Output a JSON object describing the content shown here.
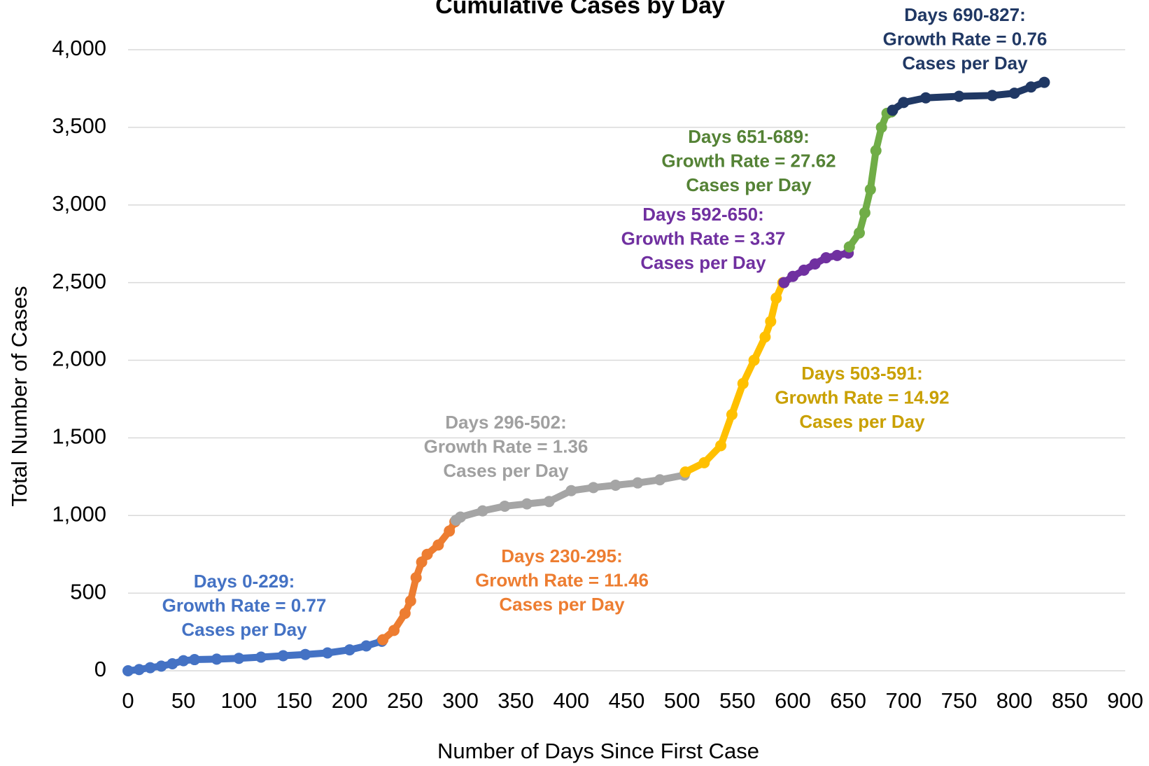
{
  "chart_data": {
    "type": "scatter",
    "title": "Cumulative Cases by Day",
    "x_label": "Number of Days Since First Case",
    "y_label": "Total Number of Cases",
    "xlim": [
      0,
      900
    ],
    "xticks": [
      0,
      50,
      100,
      150,
      200,
      250,
      300,
      350,
      400,
      450,
      500,
      550,
      600,
      650,
      700,
      750,
      800,
      850,
      900
    ],
    "ylim": [
      0,
      4000
    ],
    "yticks": [
      0,
      500,
      {
        "value": 1000,
        "label": "1,000"
      },
      {
        "value": 1500,
        "label": "1,500"
      },
      {
        "value": 2000,
        "label": "2,000"
      },
      {
        "value": 2500,
        "label": "2,500"
      },
      {
        "value": 3000,
        "label": "3,000"
      },
      {
        "value": 3500,
        "label": "3,500"
      },
      {
        "value": 4000,
        "label": "4,000"
      }
    ],
    "grid": true,
    "series": [
      {
        "color": "#4472c4",
        "x": [
          0,
          10,
          20,
          30,
          40,
          50,
          60,
          80,
          100,
          120,
          140,
          160,
          180,
          200,
          215,
          229
        ],
        "values": [
          0,
          8,
          20,
          30,
          45,
          65,
          72,
          75,
          80,
          88,
          97,
          105,
          115,
          135,
          160,
          190
        ]
      },
      {
        "color": "#ed7d31",
        "x": [
          230,
          240,
          250,
          255,
          260,
          265,
          270,
          280,
          290,
          295
        ],
        "values": [
          200,
          260,
          370,
          450,
          600,
          700,
          750,
          810,
          900,
          960
        ]
      },
      {
        "color": "#a5a5a5",
        "x": [
          296,
          300,
          320,
          340,
          360,
          380,
          400,
          420,
          440,
          460,
          480,
          502
        ],
        "values": [
          970,
          990,
          1030,
          1060,
          1075,
          1090,
          1160,
          1180,
          1195,
          1210,
          1230,
          1260
        ]
      },
      {
        "color": "#ffc000",
        "x": [
          503,
          520,
          535,
          545,
          555,
          565,
          575,
          580,
          585,
          591
        ],
        "values": [
          1280,
          1340,
          1450,
          1650,
          1850,
          2000,
          2150,
          2250,
          2400,
          2500
        ]
      },
      {
        "color": "#7030a0",
        "x": [
          592,
          600,
          610,
          620,
          630,
          640,
          650
        ],
        "values": [
          2500,
          2540,
          2580,
          2620,
          2660,
          2675,
          2690
        ]
      },
      {
        "color": "#70ad47",
        "x": [
          651,
          660,
          665,
          670,
          675,
          680,
          685,
          689
        ],
        "values": [
          2730,
          2820,
          2950,
          3100,
          3350,
          3500,
          3590,
          3600
        ]
      },
      {
        "color": "#203864",
        "x": [
          690,
          700,
          720,
          750,
          780,
          800,
          815,
          827
        ],
        "values": [
          3610,
          3660,
          3690,
          3700,
          3705,
          3720,
          3760,
          3790
        ]
      }
    ],
    "annotations": [
      {
        "color": "#4472c4",
        "lines": [
          "Days 0-229:",
          "Growth Rate = 0.77",
          "Cases per Day"
        ]
      },
      {
        "color": "#ed7d31",
        "lines": [
          "Days 230-295:",
          "Growth Rate = 11.46",
          "Cases per Day"
        ]
      },
      {
        "color": "#a0a0a0",
        "lines": [
          "Days 296-502:",
          "Growth Rate = 1.36",
          "Cases per Day"
        ]
      },
      {
        "color": "#c9a000",
        "lines": [
          "Days 503-591:",
          "Growth Rate = 14.92",
          "Cases per Day"
        ]
      },
      {
        "color": "#7030a0",
        "lines": [
          "Days 592-650:",
          "Growth Rate = 3.37",
          "Cases per Day"
        ]
      },
      {
        "color": "#548235",
        "lines": [
          "Days 651-689:",
          "Growth Rate = 27.62",
          "Cases per Day"
        ]
      },
      {
        "color": "#203864",
        "lines": [
          "Days 690-827:",
          "Growth Rate = 0.76",
          "Cases per Day"
        ]
      }
    ]
  }
}
